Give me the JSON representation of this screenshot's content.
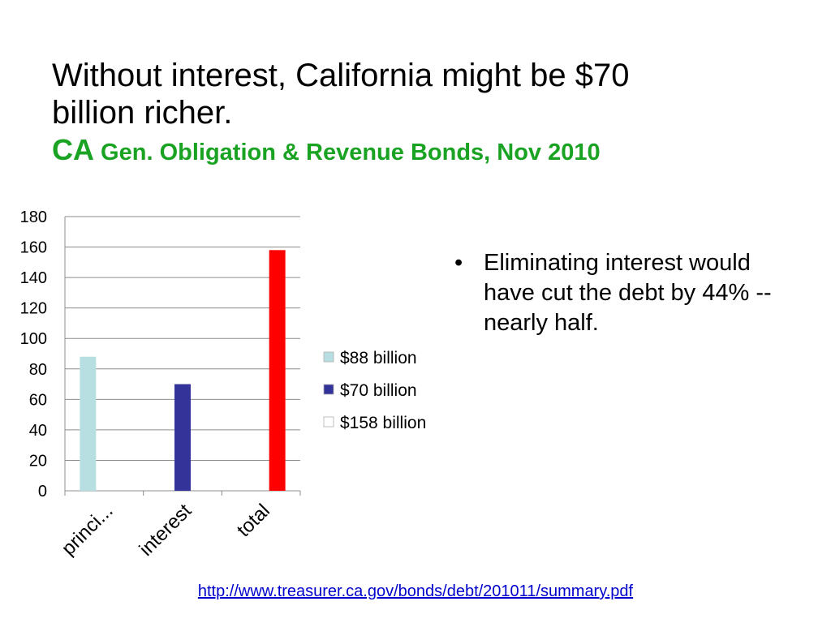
{
  "title": {
    "line1": "Without interest, California might be $70",
    "line2": "billion richer.",
    "subtitle_prefix": "CA",
    "subtitle_rest": " Gen. Obligation & Revenue Bonds, Nov 2010"
  },
  "bullet": {
    "marker": "•",
    "text": "Eliminating interest would have cut the debt by 44% -- nearly half."
  },
  "source_link": "http://www.treasurer.ca.gov/bonds/debt/201011/summary.pdf",
  "chart_data": {
    "type": "bar",
    "categories": [
      "princi...",
      "interest",
      "total"
    ],
    "series": [
      {
        "name": "$88 billion",
        "color": "#b7dfe1",
        "values": [
          88,
          null,
          null
        ]
      },
      {
        "name": "$70 billion",
        "color": "#333399",
        "values": [
          null,
          70,
          null
        ]
      },
      {
        "name": "$158 billion",
        "color": "#ff0000",
        "values": [
          null,
          null,
          158
        ]
      }
    ],
    "legend_swatches": [
      "#b7dfe1",
      "#333399",
      "#ffffff"
    ],
    "ylim": [
      0,
      180
    ],
    "yticks": [
      0,
      20,
      40,
      60,
      80,
      100,
      120,
      140,
      160,
      180
    ],
    "grid": true,
    "legend_position": "right"
  }
}
